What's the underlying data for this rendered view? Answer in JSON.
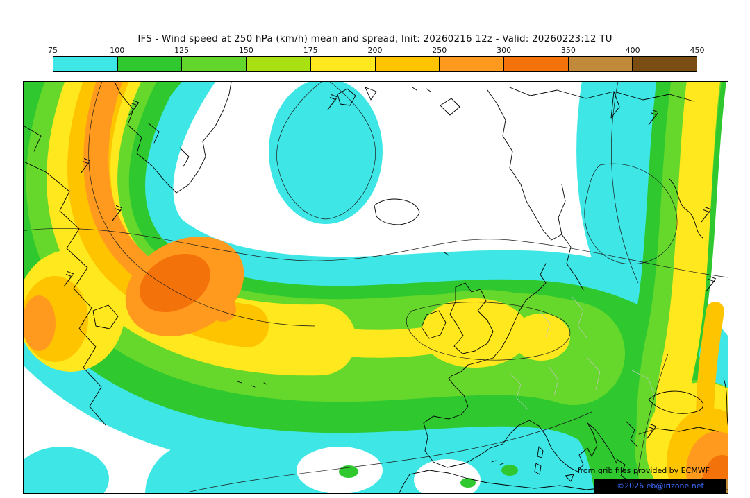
{
  "title": "IFS - Wind speed at 250 hPa (km/h) mean and spread, Init: 20260216 12z - Valid: 20260223:12 TU",
  "colorbar": {
    "ticks": [
      "75",
      "100",
      "125",
      "150",
      "175",
      "200",
      "250",
      "300",
      "350",
      "400",
      "450"
    ],
    "colors": [
      "#3ee6e6",
      "#2fc92f",
      "#63d62c",
      "#a8e012",
      "#ffe81e",
      "#ffc400",
      "#ff9a1e",
      "#f4720a",
      "#c08a3a",
      "#7a4d12"
    ]
  },
  "map": {
    "credit_line": "from grib files provided by ECMWF",
    "copyright": "©2026 eb@irizone.net"
  },
  "chart_data": {
    "type": "heatmap",
    "title": "IFS - Wind speed at 250 hPa (km/h) mean and spread",
    "model": "IFS",
    "variable": "Wind speed at 250 hPa",
    "units": "km/h",
    "init": "20260216 12z",
    "valid": "20260223:12 TU",
    "legend_boundaries": [
      75,
      100,
      125,
      150,
      175,
      200,
      250,
      300,
      350,
      400,
      450
    ],
    "legend_colors": [
      "#3ee6e6",
      "#2fc92f",
      "#63d62c",
      "#a8e012",
      "#ffe81e",
      "#ffc400",
      "#ff9a1e",
      "#f4720a",
      "#c08a3a",
      "#7a4d12"
    ],
    "legend_position": "top",
    "region": "North Atlantic - Europe",
    "notes_visible_features": "Jet streak maximum (250-350 km/h) west of the map over the western Atlantic; broad 150-200 km/h band stretching across the Atlantic to the British Isles; second intense band along the eastern map edge strengthening toward the southeast corner"
  }
}
